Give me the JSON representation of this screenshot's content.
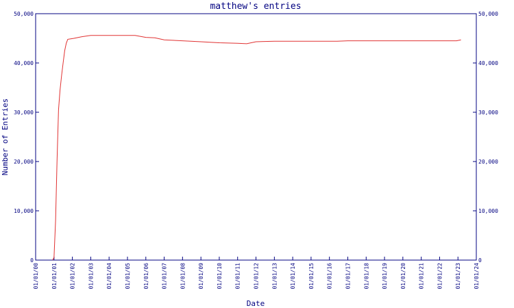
{
  "chart_data": {
    "type": "line",
    "title": "matthew's entries",
    "xlabel": "Date",
    "ylabel": "Number of Entries",
    "xlim": [
      "01/01/00",
      "01/01/24"
    ],
    "ylim": [
      0,
      50000
    ],
    "x_ticks": [
      "01/01/00",
      "01/01/01",
      "01/01/02",
      "01/01/03",
      "01/01/04",
      "01/01/05",
      "01/01/06",
      "01/01/07",
      "01/01/08",
      "01/01/09",
      "01/01/10",
      "01/01/11",
      "01/01/12",
      "01/01/13",
      "01/01/14",
      "01/01/15",
      "01/01/16",
      "01/01/17",
      "01/01/18",
      "01/01/19",
      "01/01/20",
      "01/01/21",
      "01/01/22",
      "01/01/23",
      "01/01/24"
    ],
    "y_ticks": [
      "0",
      "10,000",
      "20,000",
      "30,000",
      "40,000",
      "50,000"
    ],
    "grid": false,
    "colors": {
      "axis": "#000080",
      "line": "#e03030",
      "text": "#000080"
    },
    "series": [
      {
        "x": [
          "2000-12-01",
          "2001-01-01",
          "2001-02-01",
          "2001-03-01",
          "2001-04-01",
          "2001-05-01",
          "2001-06-01",
          "2001-07-01",
          "2001-08-01",
          "2001-09-01",
          "2001-10-01",
          "2001-12-01",
          "2002-02-01",
          "2002-07-01",
          "2003-01-01",
          "2004-01-01",
          "2005-01-01",
          "2005-06-01",
          "2006-01-01",
          "2006-07-01",
          "2007-01-01",
          "2008-01-01",
          "2009-01-01",
          "2010-01-01",
          "2011-01-01",
          "2011-07-01",
          "2012-01-01",
          "2013-01-01",
          "2014-01-01",
          "2015-01-01",
          "2016-01-01",
          "2016-06-01",
          "2017-01-01",
          "2018-01-01",
          "2019-01-01",
          "2020-01-01",
          "2021-01-01",
          "2022-01-01",
          "2022-12-01",
          "2023-03-01"
        ],
        "y": [
          0,
          500,
          8000,
          20000,
          30500,
          34500,
          37500,
          40000,
          42500,
          44000,
          44800,
          44900,
          45000,
          45300,
          45600,
          45600,
          45600,
          45600,
          45200,
          45100,
          44700,
          44500,
          44300,
          44100,
          44000,
          43900,
          44300,
          44400,
          44400,
          44400,
          44400,
          44400,
          44500,
          44500,
          44500,
          44500,
          44500,
          44500,
          44500,
          44700
        ]
      }
    ]
  }
}
